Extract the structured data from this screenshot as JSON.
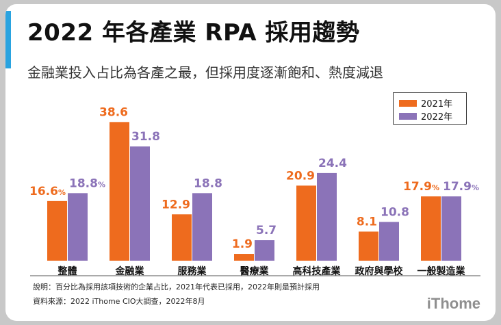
{
  "title": "2022 年各產業 RPA 採用趨勢",
  "subtitle": "金融業投入占比為各產之最，但採用度逐漸飽和、熱度減退",
  "notes": {
    "line1": "說明：百分比為採用該項技術的企業占比，2021年代表已採用，2022年則是預計採用",
    "line2": "資料來源：2022 iThome CIO大調查，2022年8月"
  },
  "brand": "iThome",
  "colors": {
    "series_2021": "#ee6b1e",
    "series_2022": "#8b73b8"
  },
  "chart_data": {
    "type": "bar",
    "categories": [
      "整體",
      "金融業",
      "服務業",
      "醫療業",
      "高科技產業",
      "政府與學校",
      "一般製造業"
    ],
    "series": [
      {
        "name": "2021年",
        "values": [
          16.6,
          38.6,
          12.9,
          1.9,
          20.9,
          8.1,
          17.9
        ],
        "labels": [
          "16.6%",
          "38.6",
          "12.9",
          "1.9",
          "20.9",
          "8.1",
          "17.9%"
        ]
      },
      {
        "name": "2022年",
        "values": [
          18.8,
          31.8,
          18.8,
          5.7,
          24.4,
          10.8,
          17.9
        ],
        "labels": [
          "18.8%",
          "31.8",
          "18.8",
          "5.7",
          "24.4",
          "10.8",
          "17.9%"
        ]
      }
    ],
    "ylim": [
      0,
      40
    ],
    "legend": "top-right",
    "grid": false
  }
}
